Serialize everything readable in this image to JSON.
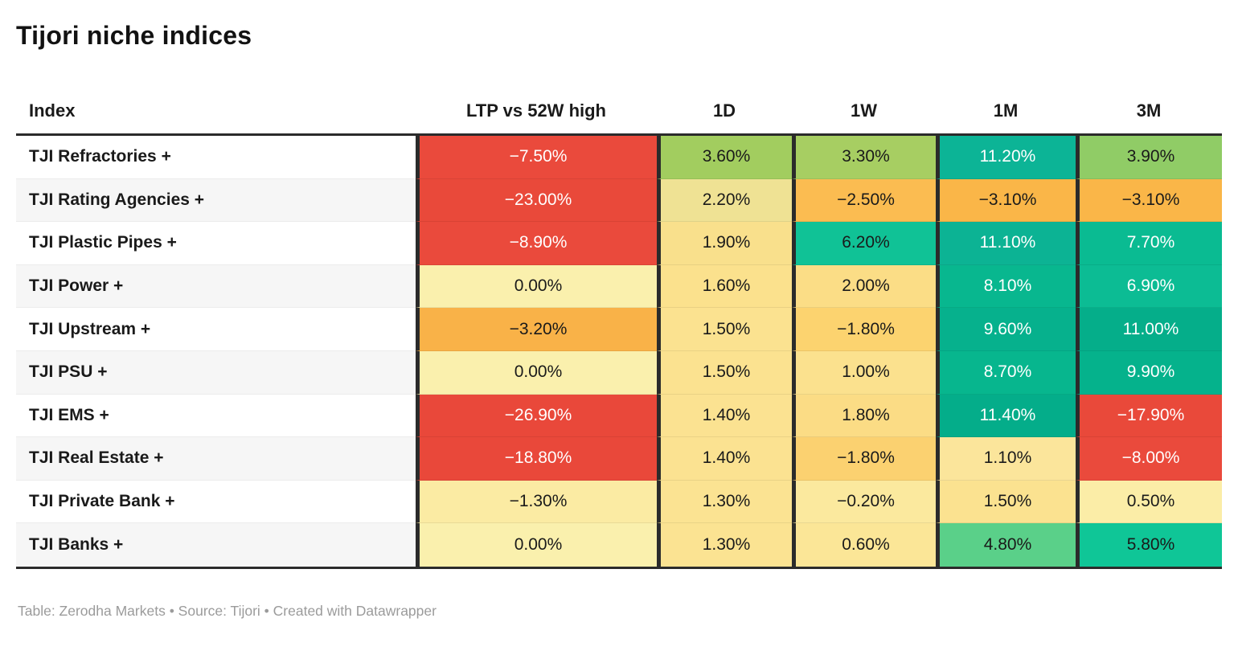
{
  "chart_data": {
    "type": "table",
    "title": "Tijori niche indices",
    "footer": "Table: Zerodha Markets • Source: Tijori • Created with Datawrapper",
    "columns": [
      "Index",
      "LTP vs 52W high",
      "1D",
      "1W",
      "1M",
      "3M"
    ],
    "legend_position": "none",
    "grid": "heatmap-cells",
    "rows": [
      {
        "index": "TJI Refractories +",
        "cells": [
          {
            "value": "−7.50%",
            "bg": "#ea4a3c",
            "text": "#ffffff"
          },
          {
            "value": "3.60%",
            "bg": "#a2cd5f",
            "text": "#1a1a1a"
          },
          {
            "value": "3.30%",
            "bg": "#a7ce62",
            "text": "#1a1a1a"
          },
          {
            "value": "11.20%",
            "bg": "#0cb496",
            "text": "#ffffff"
          },
          {
            "value": "3.90%",
            "bg": "#90cc66",
            "text": "#1a1a1a"
          }
        ]
      },
      {
        "index": "TJI Rating Agencies +",
        "cells": [
          {
            "value": "−23.00%",
            "bg": "#e9493a",
            "text": "#ffffff"
          },
          {
            "value": "2.20%",
            "bg": "#efe294",
            "text": "#1a1a1a"
          },
          {
            "value": "−2.50%",
            "bg": "#fbbc51",
            "text": "#1a1a1a"
          },
          {
            "value": "−3.10%",
            "bg": "#fab648",
            "text": "#1a1a1a"
          },
          {
            "value": "−3.10%",
            "bg": "#fab648",
            "text": "#1a1a1a"
          }
        ]
      },
      {
        "index": "TJI Plastic Pipes +",
        "cells": [
          {
            "value": "−8.90%",
            "bg": "#ea4a3c",
            "text": "#ffffff"
          },
          {
            "value": "1.90%",
            "bg": "#f9e08c",
            "text": "#1a1a1a"
          },
          {
            "value": "6.20%",
            "bg": "#10c296",
            "text": "#1a1a1a"
          },
          {
            "value": "11.10%",
            "bg": "#0cb394",
            "text": "#ffffff"
          },
          {
            "value": "7.70%",
            "bg": "#0abb92",
            "text": "#ffffff"
          }
        ]
      },
      {
        "index": "TJI Power +",
        "cells": [
          {
            "value": "0.00%",
            "bg": "#faf0ad",
            "text": "#1a1a1a"
          },
          {
            "value": "1.60%",
            "bg": "#fbe18d",
            "text": "#1a1a1a"
          },
          {
            "value": "2.00%",
            "bg": "#fbdd86",
            "text": "#1a1a1a"
          },
          {
            "value": "8.10%",
            "bg": "#08b78f",
            "text": "#ffffff"
          },
          {
            "value": "6.90%",
            "bg": "#0cbc94",
            "text": "#ffffff"
          }
        ]
      },
      {
        "index": "TJI Upstream +",
        "cells": [
          {
            "value": "−3.20%",
            "bg": "#f9b248",
            "text": "#1a1a1a"
          },
          {
            "value": "1.50%",
            "bg": "#fbe290",
            "text": "#1a1a1a"
          },
          {
            "value": "−1.80%",
            "bg": "#fcd36f",
            "text": "#1a1a1a"
          },
          {
            "value": "9.60%",
            "bg": "#06b18d",
            "text": "#ffffff"
          },
          {
            "value": "11.00%",
            "bg": "#05ae8a",
            "text": "#ffffff"
          }
        ]
      },
      {
        "index": "TJI PSU +",
        "cells": [
          {
            "value": "0.00%",
            "bg": "#faf0ad",
            "text": "#1a1a1a"
          },
          {
            "value": "1.50%",
            "bg": "#fbe290",
            "text": "#1a1a1a"
          },
          {
            "value": "1.00%",
            "bg": "#fbe18e",
            "text": "#1a1a1a"
          },
          {
            "value": "8.70%",
            "bg": "#07b68e",
            "text": "#ffffff"
          },
          {
            "value": "9.90%",
            "bg": "#05b28c",
            "text": "#ffffff"
          }
        ]
      },
      {
        "index": "TJI EMS +",
        "cells": [
          {
            "value": "−26.90%",
            "bg": "#e9483a",
            "text": "#ffffff"
          },
          {
            "value": "1.40%",
            "bg": "#fbe291",
            "text": "#1a1a1a"
          },
          {
            "value": "1.80%",
            "bg": "#fbdc85",
            "text": "#1a1a1a"
          },
          {
            "value": "11.40%",
            "bg": "#04ad8a",
            "text": "#ffffff"
          },
          {
            "value": "−17.90%",
            "bg": "#e9493a",
            "text": "#ffffff"
          }
        ]
      },
      {
        "index": "TJI Real Estate +",
        "cells": [
          {
            "value": "−18.80%",
            "bg": "#e9483a",
            "text": "#ffffff"
          },
          {
            "value": "1.40%",
            "bg": "#fbe291",
            "text": "#1a1a1a"
          },
          {
            "value": "−1.80%",
            "bg": "#fbd170",
            "text": "#1a1a1a"
          },
          {
            "value": "1.10%",
            "bg": "#fbe59b",
            "text": "#1a1a1a"
          },
          {
            "value": "−8.00%",
            "bg": "#ea4a3c",
            "text": "#ffffff"
          }
        ]
      },
      {
        "index": "TJI Private Bank +",
        "cells": [
          {
            "value": "−1.30%",
            "bg": "#fbeba3",
            "text": "#1a1a1a"
          },
          {
            "value": "1.30%",
            "bg": "#fbe392",
            "text": "#1a1a1a"
          },
          {
            "value": "−0.20%",
            "bg": "#fbe99e",
            "text": "#1a1a1a"
          },
          {
            "value": "1.50%",
            "bg": "#fbe290",
            "text": "#1a1a1a"
          },
          {
            "value": "0.50%",
            "bg": "#fbeda7",
            "text": "#1a1a1a"
          }
        ]
      },
      {
        "index": "TJI Banks +",
        "cells": [
          {
            "value": "0.00%",
            "bg": "#faf0ad",
            "text": "#1a1a1a"
          },
          {
            "value": "1.30%",
            "bg": "#fbe392",
            "text": "#1a1a1a"
          },
          {
            "value": "0.60%",
            "bg": "#fbe697",
            "text": "#1a1a1a"
          },
          {
            "value": "4.80%",
            "bg": "#5ad089",
            "text": "#1a1a1a"
          },
          {
            "value": "5.80%",
            "bg": "#0fc697",
            "text": "#1a1a1a"
          }
        ]
      }
    ]
  }
}
